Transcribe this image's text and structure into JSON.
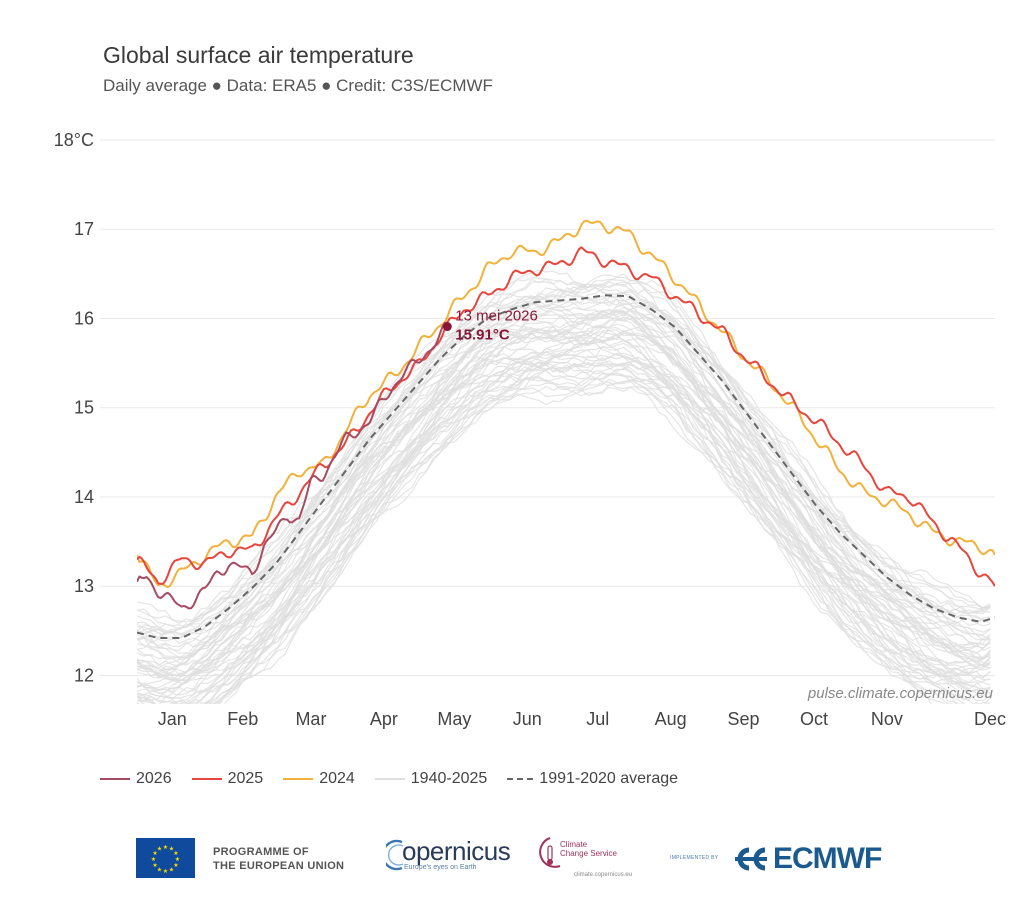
{
  "chart_data": {
    "type": "line",
    "title": "Global surface air temperature",
    "subtitle": "Daily average ● Data: ERA5 ● Credit: C3S/ECMWF",
    "xlabel": "",
    "ylabel": "",
    "y_tick_labels": [
      "12",
      "13",
      "14",
      "15",
      "16",
      "17",
      "18°C"
    ],
    "y_ticks": [
      12,
      13,
      14,
      15,
      16,
      17,
      18
    ],
    "ylim": [
      11.68,
      18.0
    ],
    "x_tick_labels": [
      "Jan",
      "Feb",
      "Mar",
      "Apr",
      "May",
      "Jun",
      "Jul",
      "Aug",
      "Sep",
      "Oct",
      "Nov",
      "Dec"
    ],
    "xlim": [
      1,
      366
    ],
    "grid": "horizontal",
    "legend_position": "bottom",
    "annotation": {
      "date_label": "13 mei 2026",
      "value_label": "15.91°C",
      "x": 133,
      "y": 15.91
    },
    "credit": "pulse.climate.copernicus.eu",
    "series": [
      {
        "name": "2026",
        "color": "#a84a63",
        "x": [
          1,
          5,
          10,
          15,
          20,
          25,
          30,
          35,
          40,
          45,
          50,
          55,
          60,
          65,
          70,
          75,
          80,
          85,
          90,
          95,
          100,
          105,
          110,
          115,
          120,
          125,
          130,
          133
        ],
        "y": [
          13.05,
          13.1,
          12.95,
          12.85,
          12.75,
          12.85,
          12.95,
          13.15,
          13.25,
          13.2,
          13.15,
          13.45,
          13.6,
          13.8,
          13.75,
          14.15,
          14.25,
          14.45,
          14.65,
          14.75,
          14.85,
          15.05,
          15.25,
          15.4,
          15.5,
          15.65,
          15.8,
          15.91
        ]
      },
      {
        "name": "2025",
        "color": "#e8453c",
        "x": [
          1,
          10,
          20,
          30,
          40,
          50,
          60,
          70,
          80,
          90,
          100,
          110,
          120,
          130,
          140,
          150,
          160,
          170,
          180,
          190,
          200,
          210,
          220,
          230,
          240,
          250,
          260,
          270,
          280,
          290,
          300,
          310,
          320,
          330,
          340,
          350,
          360,
          366
        ],
        "y": [
          13.3,
          13.05,
          13.3,
          13.25,
          13.4,
          13.4,
          13.75,
          14.05,
          14.35,
          14.6,
          14.95,
          15.25,
          15.45,
          15.8,
          16.1,
          16.25,
          16.45,
          16.55,
          16.6,
          16.75,
          16.65,
          16.55,
          16.45,
          16.25,
          16.05,
          15.85,
          15.55,
          15.3,
          15.05,
          14.85,
          14.6,
          14.35,
          14.05,
          14.0,
          13.7,
          13.45,
          13.15,
          13.0
        ]
      },
      {
        "name": "2024",
        "color": "#f2b13a",
        "x": [
          1,
          10,
          20,
          30,
          40,
          50,
          60,
          70,
          80,
          90,
          100,
          110,
          120,
          130,
          140,
          150,
          160,
          170,
          180,
          190,
          200,
          210,
          220,
          230,
          240,
          250,
          260,
          270,
          280,
          290,
          300,
          310,
          320,
          330,
          340,
          350,
          360,
          366
        ],
        "y": [
          13.35,
          13.0,
          13.15,
          13.35,
          13.5,
          13.55,
          14.0,
          14.3,
          14.35,
          14.75,
          15.15,
          15.35,
          15.65,
          15.95,
          16.25,
          16.55,
          16.75,
          16.75,
          16.85,
          17.05,
          17.05,
          16.95,
          16.7,
          16.45,
          16.15,
          15.85,
          15.55,
          15.3,
          15.0,
          14.65,
          14.3,
          14.05,
          13.95,
          13.8,
          13.6,
          13.5,
          13.45,
          13.35
        ]
      },
      {
        "name": "1940-2025",
        "color": "#dedede"
      },
      {
        "name": "1991-2020 average",
        "color": "#666666",
        "x": [
          1,
          10,
          20,
          30,
          40,
          50,
          60,
          70,
          80,
          90,
          100,
          110,
          120,
          130,
          140,
          150,
          160,
          170,
          180,
          190,
          200,
          210,
          220,
          230,
          240,
          250,
          260,
          270,
          280,
          290,
          300,
          310,
          320,
          330,
          340,
          350,
          360,
          366
        ],
        "y": [
          12.48,
          12.42,
          12.42,
          12.55,
          12.75,
          12.98,
          13.25,
          13.6,
          13.95,
          14.3,
          14.65,
          14.95,
          15.25,
          15.55,
          15.8,
          16.0,
          16.1,
          16.18,
          16.2,
          16.22,
          16.26,
          16.25,
          16.1,
          15.9,
          15.6,
          15.3,
          14.95,
          14.6,
          14.25,
          13.9,
          13.6,
          13.35,
          13.1,
          12.9,
          12.75,
          12.65,
          12.6,
          12.65
        ]
      }
    ]
  },
  "footer": {
    "eu_text_line1": "PROGRAMME OF",
    "eu_text_line2": "THE EUROPEAN UNION",
    "copernicus_name": "opernicus",
    "copernicus_tagline": "Europe's eyes on Earth",
    "c3s_line1": "Climate",
    "c3s_line2": "Change Service",
    "c3s_url": "climate.copernicus.eu",
    "implemented_by": "IMPLEMENTED BY",
    "ecmwf_name": "ECMWF"
  }
}
